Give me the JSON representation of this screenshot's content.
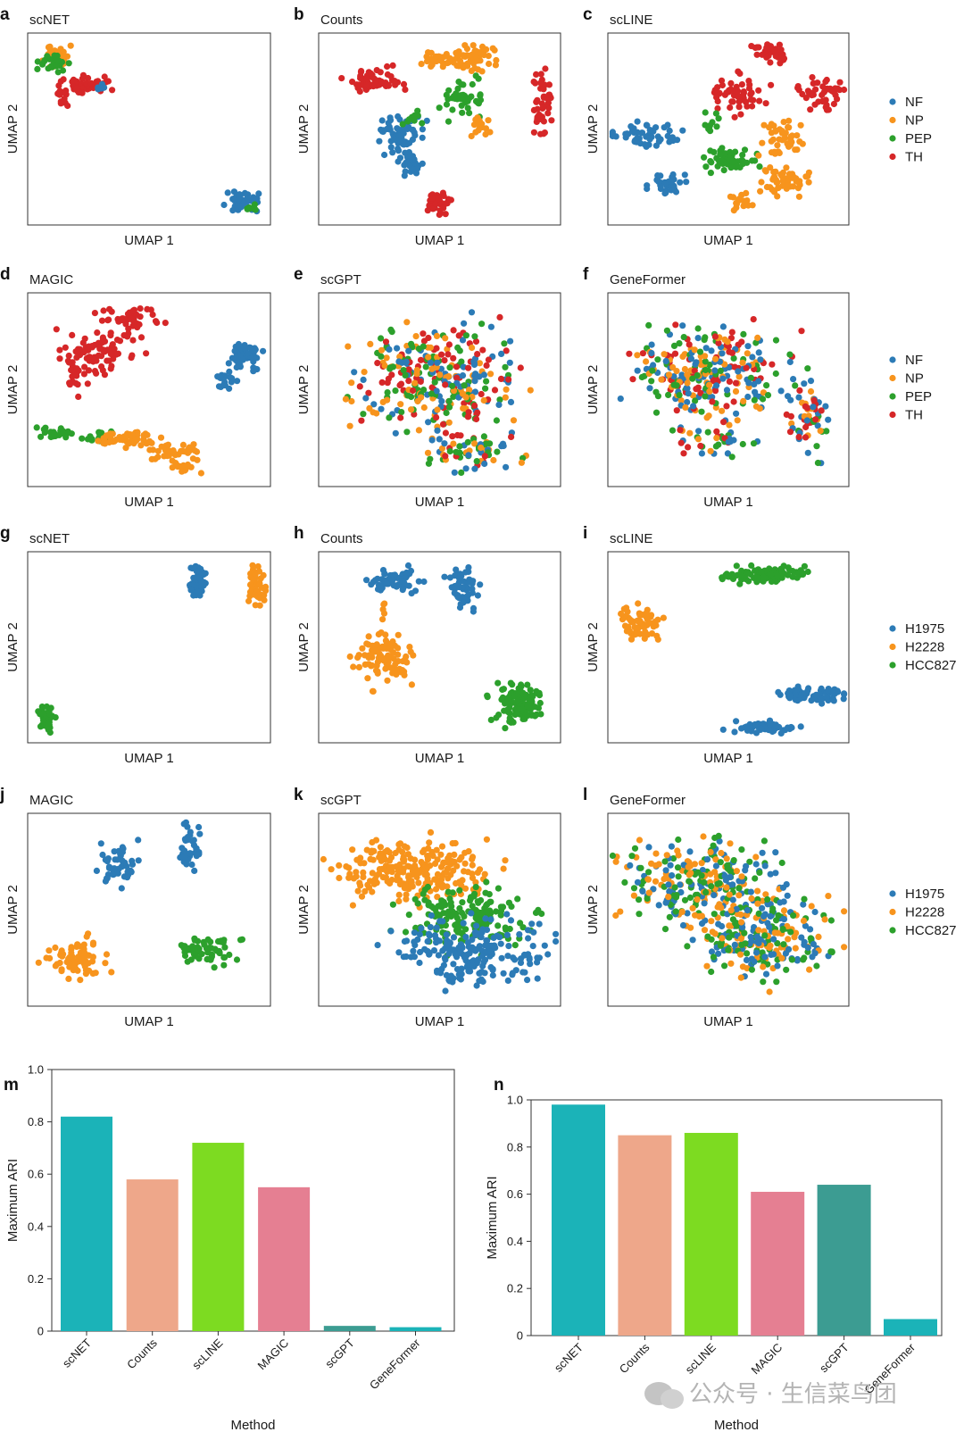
{
  "colors": {
    "blue": "#2c7bb6",
    "orange": "#f7941d",
    "green": "#2ca02c",
    "red": "#d62728"
  },
  "legends": [
    {
      "items": [
        "NF",
        "NP",
        "PEP",
        "TH"
      ]
    },
    {
      "items": [
        "NF",
        "NP",
        "PEP",
        "TH"
      ]
    },
    {
      "items": [
        "H1975",
        "H2228",
        "HCC827"
      ]
    },
    {
      "items": [
        "H1975",
        "H2228",
        "HCC827"
      ]
    }
  ],
  "watermark": "公众号 · 生信菜鸟团",
  "chart_data": [
    {
      "panel": "a",
      "type": "scatter",
      "title": "scNET",
      "xlabel": "UMAP 1",
      "ylabel": "UMAP 2",
      "legend": [
        "NF",
        "NP",
        "PEP",
        "TH"
      ]
    },
    {
      "panel": "b",
      "type": "scatter",
      "title": "Counts",
      "xlabel": "UMAP 1",
      "ylabel": "UMAP 2",
      "legend": [
        "NF",
        "NP",
        "PEP",
        "TH"
      ]
    },
    {
      "panel": "c",
      "type": "scatter",
      "title": "scLINE",
      "xlabel": "UMAP 1",
      "ylabel": "UMAP 2",
      "legend": [
        "NF",
        "NP",
        "PEP",
        "TH"
      ]
    },
    {
      "panel": "d",
      "type": "scatter",
      "title": "MAGIC",
      "xlabel": "UMAP 1",
      "ylabel": "UMAP 2",
      "legend": [
        "NF",
        "NP",
        "PEP",
        "TH"
      ]
    },
    {
      "panel": "e",
      "type": "scatter",
      "title": "scGPT",
      "xlabel": "UMAP 1",
      "ylabel": "UMAP 2",
      "legend": [
        "NF",
        "NP",
        "PEP",
        "TH"
      ]
    },
    {
      "panel": "f",
      "type": "scatter",
      "title": "GeneFormer",
      "xlabel": "UMAP 1",
      "ylabel": "UMAP 2",
      "legend": [
        "NF",
        "NP",
        "PEP",
        "TH"
      ]
    },
    {
      "panel": "g",
      "type": "scatter",
      "title": "scNET",
      "xlabel": "UMAP 1",
      "ylabel": "UMAP 2",
      "legend": [
        "H1975",
        "H2228",
        "HCC827"
      ]
    },
    {
      "panel": "h",
      "type": "scatter",
      "title": "Counts",
      "xlabel": "UMAP 1",
      "ylabel": "UMAP 2",
      "legend": [
        "H1975",
        "H2228",
        "HCC827"
      ]
    },
    {
      "panel": "i",
      "type": "scatter",
      "title": "scLINE",
      "xlabel": "UMAP 1",
      "ylabel": "UMAP 2",
      "legend": [
        "H1975",
        "H2228",
        "HCC827"
      ]
    },
    {
      "panel": "j",
      "type": "scatter",
      "title": "MAGIC",
      "xlabel": "UMAP 1",
      "ylabel": "UMAP 2",
      "legend": [
        "H1975",
        "H2228",
        "HCC827"
      ]
    },
    {
      "panel": "k",
      "type": "scatter",
      "title": "scGPT",
      "xlabel": "UMAP 1",
      "ylabel": "UMAP 2",
      "legend": [
        "H1975",
        "H2228",
        "HCC827"
      ]
    },
    {
      "panel": "l",
      "type": "scatter",
      "title": "GeneFormer",
      "xlabel": "UMAP 1",
      "ylabel": "UMAP 2",
      "legend": [
        "H1975",
        "H2228",
        "HCC827"
      ]
    },
    {
      "panel": "m",
      "type": "bar",
      "categories": [
        "scNET",
        "Counts",
        "scLINE",
        "MAGIC",
        "scGPT",
        "GeneFormer"
      ],
      "values": [
        0.82,
        0.58,
        0.72,
        0.55,
        0.02,
        0.015
      ],
      "colors": [
        "#1bb3b8",
        "#eea78a",
        "#7ddb21",
        "#e57f92",
        "#3c9c92",
        "#1bb3b8"
      ],
      "xlabel": "Method",
      "ylabel": "Maximum ARI",
      "ylim": [
        0,
        1.0
      ],
      "yticks": [
        "0",
        "0.2",
        "0.4",
        "0.6",
        "0.8",
        "1.0"
      ]
    },
    {
      "panel": "n",
      "type": "bar",
      "categories": [
        "scNET",
        "Counts",
        "scLINE",
        "MAGIC",
        "scGPT",
        "GeneFormer"
      ],
      "values": [
        0.98,
        0.85,
        0.86,
        0.61,
        0.64,
        0.07
      ],
      "colors": [
        "#1bb3b8",
        "#eea78a",
        "#7ddb21",
        "#e57f92",
        "#3c9c92",
        "#1bb3b8"
      ],
      "xlabel": "Method",
      "ylabel": "Maximum ARI",
      "ylim": [
        0,
        1.0
      ],
      "yticks": [
        "0",
        "0.2",
        "0.4",
        "0.6",
        "0.8",
        "1.0"
      ]
    }
  ]
}
